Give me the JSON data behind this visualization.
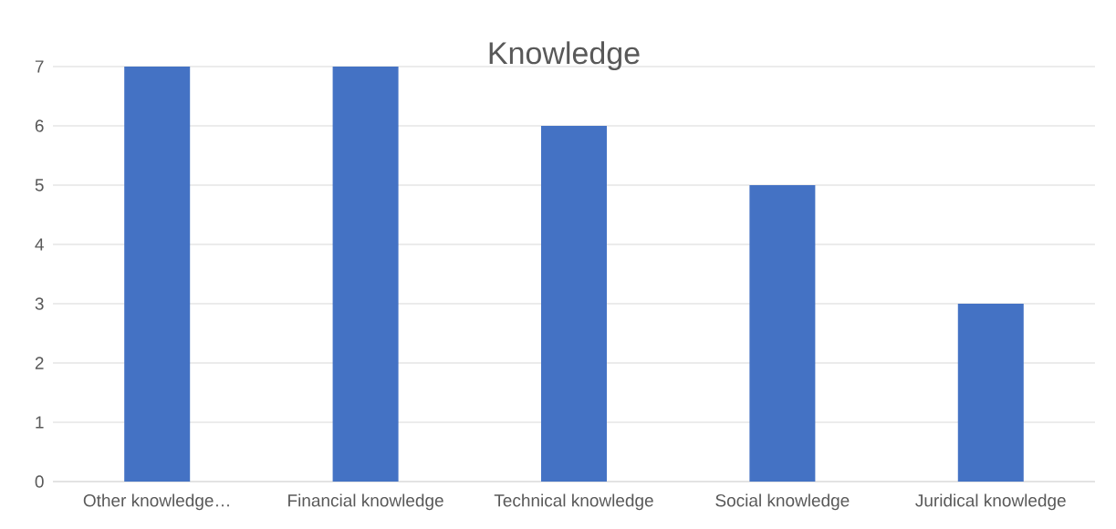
{
  "chart_data": {
    "type": "bar",
    "title": "Knowledge",
    "categories": [
      "Other knowledge…",
      "Financial knowledge",
      "Technical knowledge",
      "Social knowledge",
      "Juridical knowledge"
    ],
    "values": [
      7,
      7,
      6,
      5,
      3
    ],
    "color": "#4472c4",
    "ylim": [
      0,
      7
    ],
    "yticks": [
      0,
      1,
      2,
      3,
      4,
      5,
      6,
      7
    ],
    "grid": "y"
  }
}
